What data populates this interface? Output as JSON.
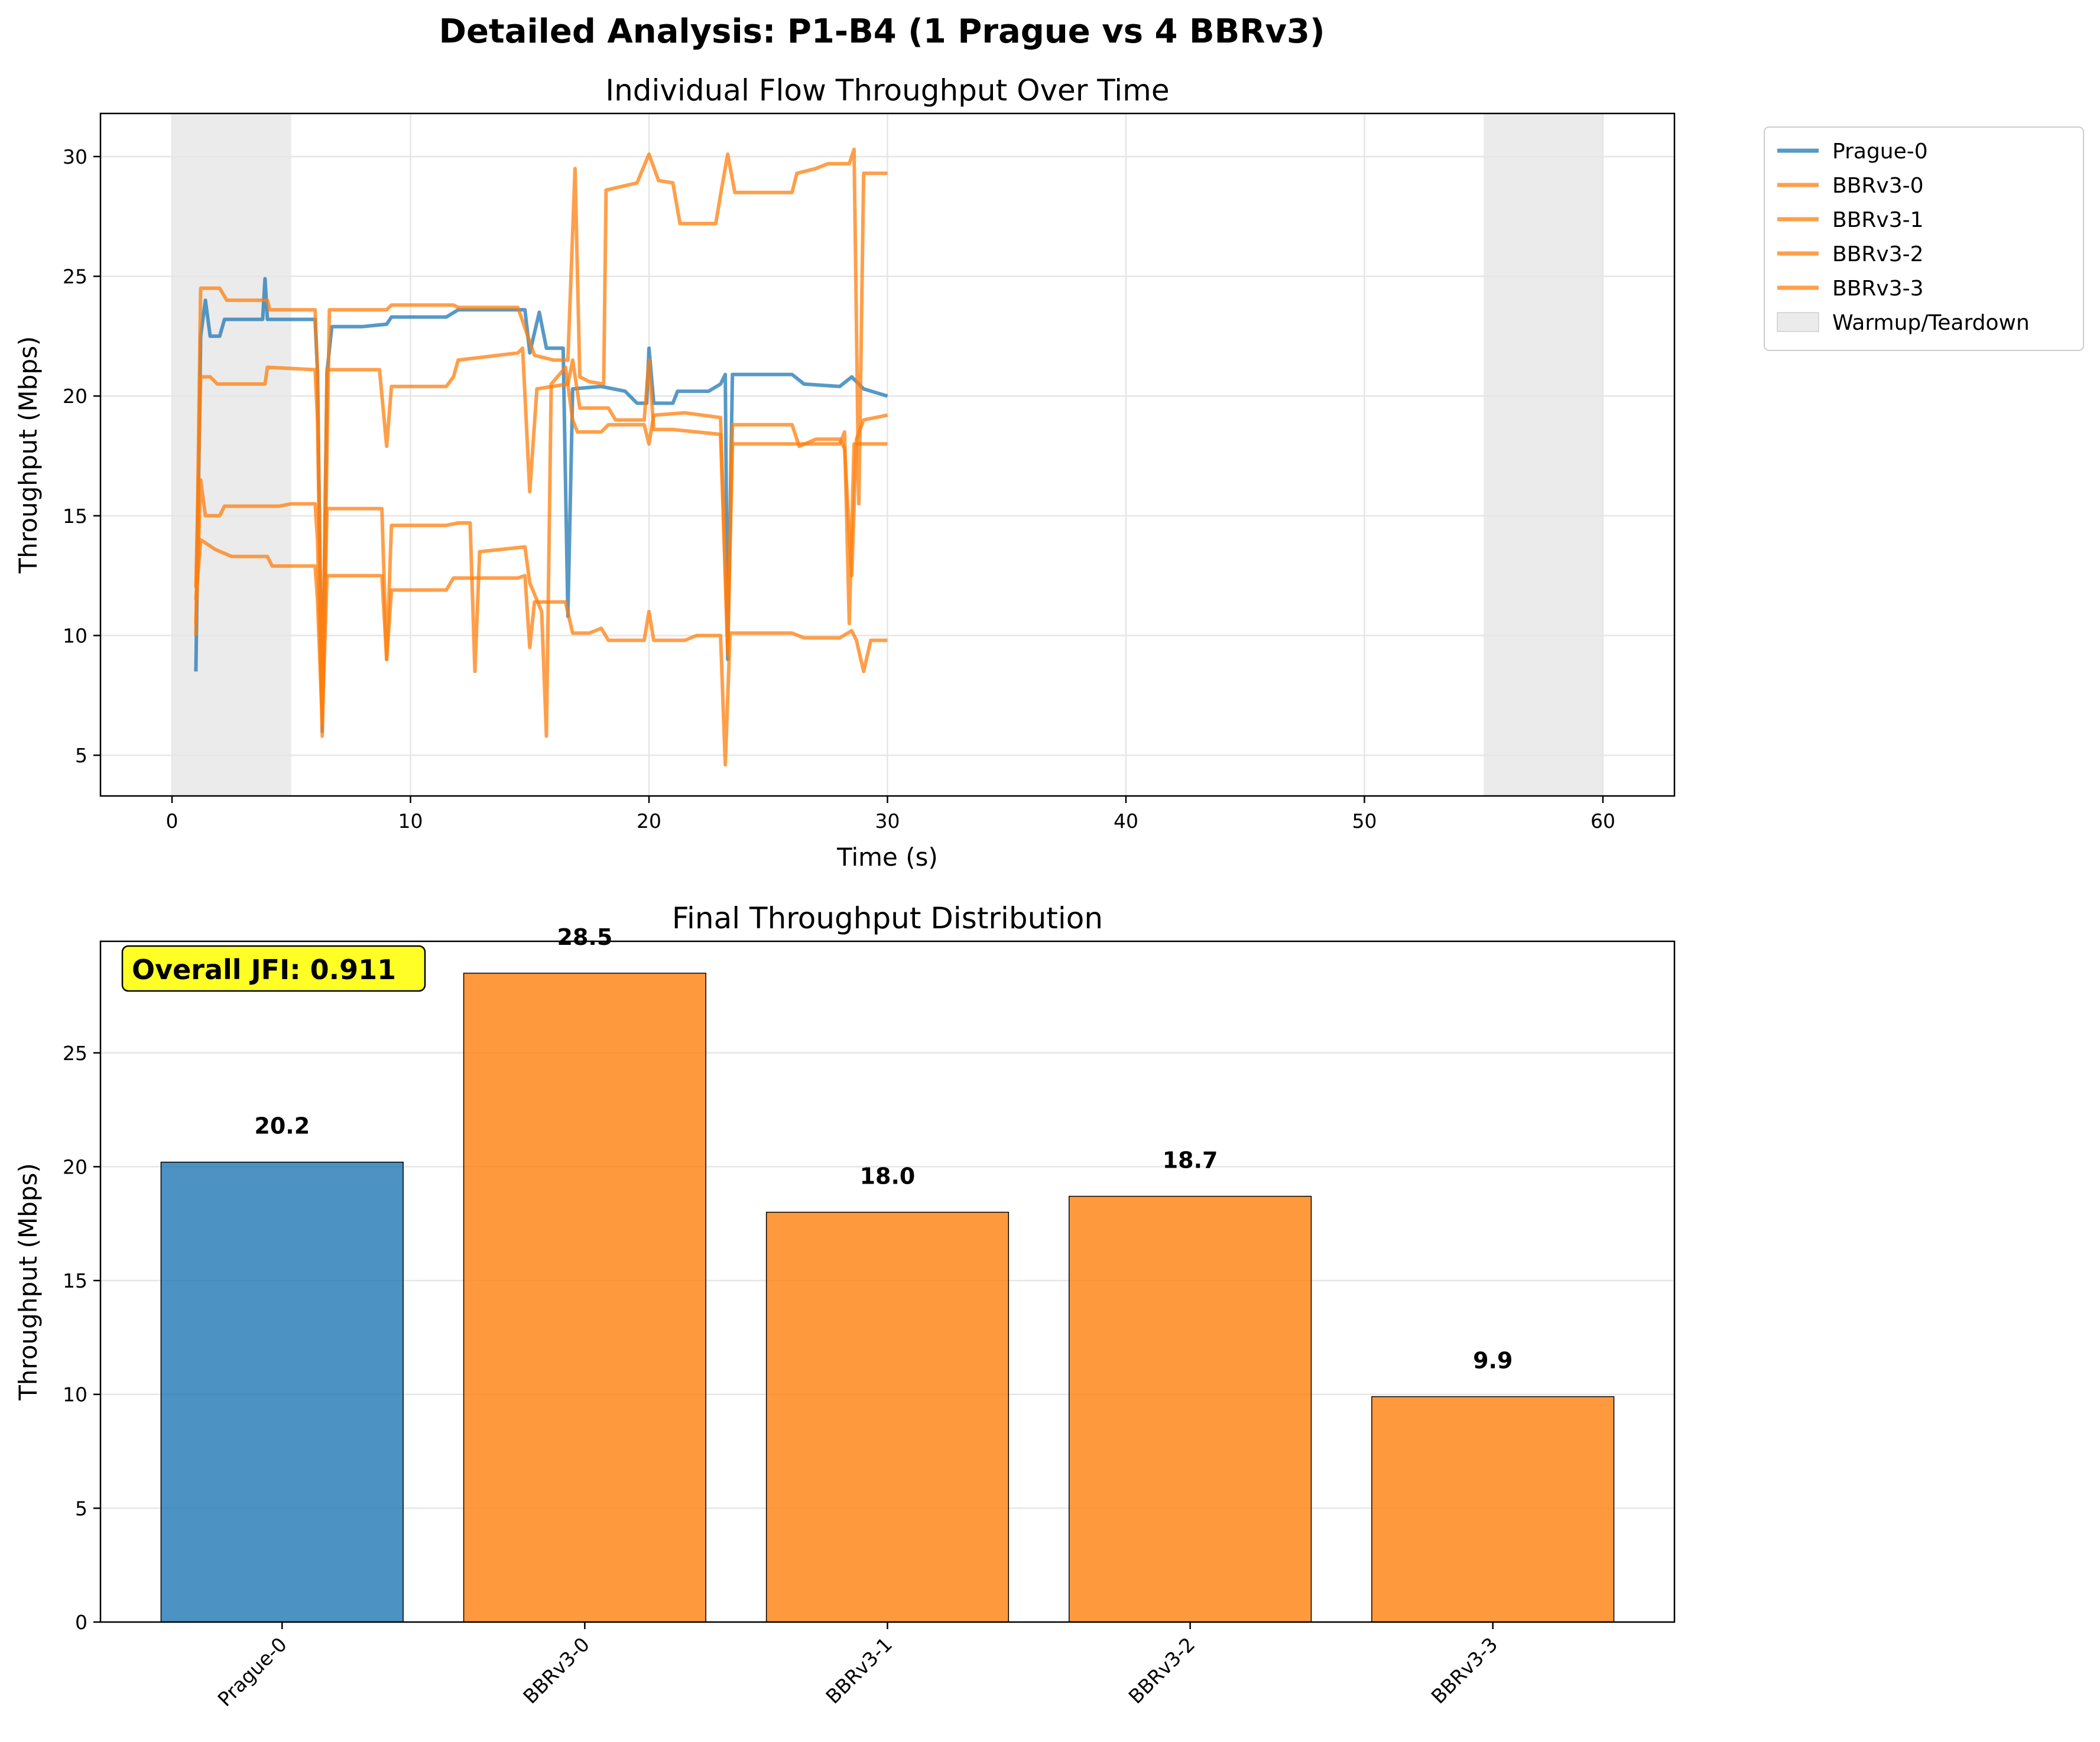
{
  "figure": {
    "suptitle": "Detailed Analysis: P1-B4 (1 Prague vs 4 BBRv3)"
  },
  "colors": {
    "prague": "#1f77b4",
    "bbr": "#ff7f0e",
    "shade": "#d3d3d3",
    "grid": "#e6e6e6",
    "jfi_box": "#ffff00"
  },
  "chart_data": [
    {
      "type": "line",
      "title": "Individual Flow Throughput Over Time",
      "xlabel": "Time (s)",
      "ylabel": "Throughput (Mbps)",
      "xlim": [
        -3,
        63
      ],
      "ylim": [
        3.3,
        31.8
      ],
      "xticks": [
        "0",
        "10",
        "20",
        "30",
        "40",
        "50",
        "60"
      ],
      "yticks": [
        "5",
        "10",
        "15",
        "20",
        "25",
        "30"
      ],
      "grid": true,
      "legend_position": "outside-right",
      "shaded_regions": [
        {
          "from": 0,
          "to": 5
        },
        {
          "from": 55,
          "to": 60
        }
      ],
      "legend": [
        "Prague-0",
        "BBRv3-0",
        "BBRv3-1",
        "BBRv3-2",
        "BBRv3-3",
        "Warmup/Teardown"
      ],
      "series": [
        {
          "name": "Prague-0",
          "color": "#1f77b4",
          "points": [
            [
              1.0,
              8.5
            ],
            [
              1.2,
              22.5
            ],
            [
              1.4,
              24.0
            ],
            [
              1.6,
              22.5
            ],
            [
              2.0,
              22.5
            ],
            [
              2.2,
              23.2
            ],
            [
              3.8,
              23.2
            ],
            [
              3.9,
              24.9
            ],
            [
              4.0,
              23.2
            ],
            [
              5.0,
              23.2
            ],
            [
              6.0,
              23.2
            ],
            [
              6.1,
              21.0
            ],
            [
              6.3,
              6.0
            ],
            [
              6.5,
              21.0
            ],
            [
              6.7,
              22.9
            ],
            [
              8.0,
              22.9
            ],
            [
              9.0,
              23.0
            ],
            [
              9.2,
              23.3
            ],
            [
              11.5,
              23.3
            ],
            [
              12.0,
              23.6
            ],
            [
              14.8,
              23.6
            ],
            [
              15.0,
              21.8
            ],
            [
              15.4,
              23.5
            ],
            [
              15.7,
              22.0
            ],
            [
              16.4,
              22.0
            ],
            [
              16.6,
              10.8
            ],
            [
              16.8,
              20.3
            ],
            [
              18.0,
              20.4
            ],
            [
              19.0,
              20.2
            ],
            [
              19.5,
              19.7
            ],
            [
              19.9,
              19.7
            ],
            [
              20.0,
              22.0
            ],
            [
              20.2,
              19.7
            ],
            [
              21.0,
              19.7
            ],
            [
              21.2,
              20.2
            ],
            [
              22.5,
              20.2
            ],
            [
              23.0,
              20.5
            ],
            [
              23.2,
              20.9
            ],
            [
              23.3,
              9.0
            ],
            [
              23.5,
              20.9
            ],
            [
              26.0,
              20.9
            ],
            [
              26.5,
              20.5
            ],
            [
              28.0,
              20.4
            ],
            [
              28.5,
              20.8
            ],
            [
              29.0,
              20.3
            ],
            [
              30.0,
              20.0
            ]
          ]
        },
        {
          "name": "BBRv3-0",
          "color": "#ff7f0e",
          "points": [
            [
              1.0,
              10.0
            ],
            [
              1.2,
              24.5
            ],
            [
              2.0,
              24.5
            ],
            [
              2.3,
              24.0
            ],
            [
              4.0,
              24.0
            ],
            [
              4.1,
              23.6
            ],
            [
              6.0,
              23.6
            ],
            [
              6.1,
              21.0
            ],
            [
              6.3,
              5.8
            ],
            [
              6.6,
              23.6
            ],
            [
              9.0,
              23.6
            ],
            [
              9.2,
              23.8
            ],
            [
              11.8,
              23.8
            ],
            [
              12.0,
              23.7
            ],
            [
              14.5,
              23.7
            ],
            [
              15.2,
              21.7
            ],
            [
              16.0,
              21.5
            ],
            [
              16.6,
              21.5
            ],
            [
              16.9,
              29.5
            ],
            [
              17.1,
              20.8
            ],
            [
              17.5,
              20.6
            ],
            [
              18.1,
              20.5
            ],
            [
              18.2,
              28.6
            ],
            [
              19.5,
              28.9
            ],
            [
              20.0,
              30.1
            ],
            [
              20.4,
              29.0
            ],
            [
              21.0,
              28.9
            ],
            [
              21.3,
              27.2
            ],
            [
              22.8,
              27.2
            ],
            [
              23.0,
              28.4
            ],
            [
              23.3,
              30.1
            ],
            [
              23.6,
              28.5
            ],
            [
              25.0,
              28.5
            ],
            [
              26.0,
              28.5
            ],
            [
              26.2,
              29.3
            ],
            [
              27.0,
              29.5
            ],
            [
              27.5,
              29.7
            ],
            [
              28.4,
              29.7
            ],
            [
              28.6,
              30.3
            ],
            [
              28.8,
              15.5
            ],
            [
              29.0,
              29.3
            ],
            [
              30.0,
              29.3
            ]
          ]
        },
        {
          "name": "BBRv3-1",
          "color": "#ff7f0e",
          "points": [
            [
              1.0,
              12.0
            ],
            [
              1.2,
              20.8
            ],
            [
              1.6,
              20.8
            ],
            [
              1.9,
              20.5
            ],
            [
              3.9,
              20.5
            ],
            [
              4.0,
              21.2
            ],
            [
              6.0,
              21.1
            ],
            [
              6.1,
              19.0
            ],
            [
              6.3,
              6.5
            ],
            [
              6.5,
              21.1
            ],
            [
              8.7,
              21.1
            ],
            [
              9.0,
              17.9
            ],
            [
              9.2,
              20.4
            ],
            [
              11.5,
              20.4
            ],
            [
              11.8,
              20.8
            ],
            [
              12.0,
              21.5
            ],
            [
              14.5,
              21.8
            ],
            [
              14.7,
              22.0
            ],
            [
              15.0,
              16.0
            ],
            [
              15.3,
              20.3
            ],
            [
              16.6,
              20.5
            ],
            [
              16.8,
              21.5
            ],
            [
              17.1,
              19.5
            ],
            [
              18.3,
              19.5
            ],
            [
              18.6,
              19.0
            ],
            [
              19.8,
              19.0
            ],
            [
              20.0,
              21.5
            ],
            [
              20.2,
              18.6
            ],
            [
              21.0,
              18.6
            ],
            [
              22.0,
              18.5
            ],
            [
              23.0,
              18.4
            ],
            [
              23.3,
              9.5
            ],
            [
              23.5,
              18.0
            ],
            [
              28.0,
              18.0
            ],
            [
              28.2,
              18.5
            ],
            [
              28.4,
              10.5
            ],
            [
              28.6,
              18.0
            ],
            [
              30.0,
              18.0
            ]
          ]
        },
        {
          "name": "BBRv3-2",
          "color": "#ff7f0e",
          "points": [
            [
              1.0,
              10.5
            ],
            [
              1.2,
              16.5
            ],
            [
              1.4,
              15.0
            ],
            [
              2.0,
              15.0
            ],
            [
              2.2,
              15.4
            ],
            [
              4.5,
              15.4
            ],
            [
              5.0,
              15.5
            ],
            [
              6.0,
              15.5
            ],
            [
              6.1,
              14.0
            ],
            [
              6.3,
              6.3
            ],
            [
              6.5,
              15.3
            ],
            [
              8.8,
              15.3
            ],
            [
              9.0,
              9.0
            ],
            [
              9.2,
              14.6
            ],
            [
              11.5,
              14.6
            ],
            [
              12.0,
              14.7
            ],
            [
              12.5,
              14.7
            ],
            [
              12.7,
              8.5
            ],
            [
              12.9,
              13.5
            ],
            [
              14.8,
              13.7
            ],
            [
              15.0,
              12.2
            ],
            [
              15.5,
              11.0
            ],
            [
              15.7,
              5.8
            ],
            [
              15.9,
              20.5
            ],
            [
              16.5,
              21.2
            ],
            [
              16.8,
              19.0
            ],
            [
              17.0,
              18.5
            ],
            [
              18.0,
              18.5
            ],
            [
              18.3,
              18.8
            ],
            [
              19.8,
              18.8
            ],
            [
              20.0,
              18.0
            ],
            [
              20.2,
              19.2
            ],
            [
              21.5,
              19.3
            ],
            [
              23.0,
              19.1
            ],
            [
              23.3,
              9.2
            ],
            [
              23.5,
              18.8
            ],
            [
              25.0,
              18.8
            ],
            [
              26.0,
              18.8
            ],
            [
              26.3,
              17.9
            ],
            [
              27.0,
              18.2
            ],
            [
              28.0,
              18.2
            ],
            [
              28.2,
              17.8
            ],
            [
              28.5,
              12.5
            ],
            [
              28.7,
              18.2
            ],
            [
              29.0,
              19.0
            ],
            [
              30.0,
              19.2
            ]
          ]
        },
        {
          "name": "BBRv3-3",
          "color": "#ff7f0e",
          "points": [
            [
              1.0,
              11.5
            ],
            [
              1.2,
              14.0
            ],
            [
              1.8,
              13.6
            ],
            [
              2.5,
              13.3
            ],
            [
              4.0,
              13.3
            ],
            [
              4.2,
              12.9
            ],
            [
              6.0,
              12.9
            ],
            [
              6.1,
              11.5
            ],
            [
              6.3,
              6.3
            ],
            [
              6.5,
              12.5
            ],
            [
              8.8,
              12.5
            ],
            [
              9.0,
              9.0
            ],
            [
              9.2,
              11.9
            ],
            [
              11.5,
              11.9
            ],
            [
              11.8,
              12.4
            ],
            [
              14.5,
              12.4
            ],
            [
              14.8,
              12.5
            ],
            [
              15.0,
              9.5
            ],
            [
              15.2,
              11.4
            ],
            [
              16.5,
              11.4
            ],
            [
              16.8,
              10.1
            ],
            [
              17.5,
              10.1
            ],
            [
              18.0,
              10.3
            ],
            [
              18.3,
              9.8
            ],
            [
              19.8,
              9.8
            ],
            [
              20.0,
              11.0
            ],
            [
              20.2,
              9.8
            ],
            [
              21.5,
              9.8
            ],
            [
              22.0,
              10.0
            ],
            [
              23.0,
              10.0
            ],
            [
              23.2,
              4.6
            ],
            [
              23.4,
              10.1
            ],
            [
              26.0,
              10.1
            ],
            [
              26.5,
              9.9
            ],
            [
              28.0,
              9.9
            ],
            [
              28.5,
              10.2
            ],
            [
              28.7,
              9.8
            ],
            [
              29.0,
              8.5
            ],
            [
              29.3,
              9.8
            ],
            [
              30.0,
              9.8
            ]
          ]
        }
      ]
    },
    {
      "type": "bar",
      "title": "Final Throughput Distribution",
      "xlabel": "",
      "ylabel": "Throughput (Mbps)",
      "ylim": [
        0,
        29.9
      ],
      "yticks": [
        "0",
        "5",
        "10",
        "15",
        "20",
        "25"
      ],
      "grid": true,
      "categories": [
        "Prague-0",
        "BBRv3-0",
        "BBRv3-1",
        "BBRv3-2",
        "BBRv3-3"
      ],
      "values": [
        20.2,
        28.5,
        18.0,
        18.7,
        9.9
      ],
      "value_labels": [
        "20.2",
        "28.5",
        "18.0",
        "18.7",
        "9.9"
      ],
      "bar_colors": [
        "#1f77b4",
        "#ff7f0e",
        "#ff7f0e",
        "#ff7f0e",
        "#ff7f0e"
      ],
      "annotation": "Overall JFI: 0.911"
    }
  ]
}
